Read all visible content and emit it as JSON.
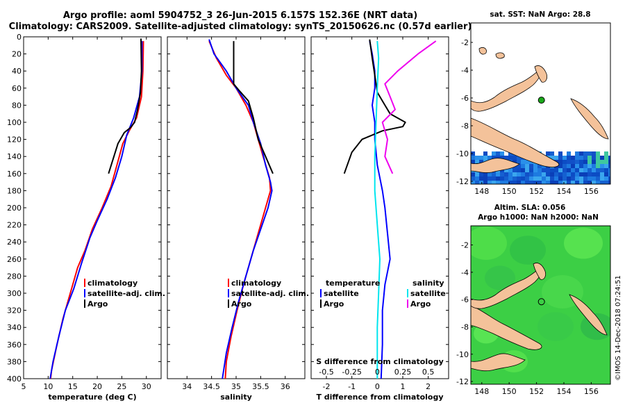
{
  "title_line1": "Argo profile: aoml 5904752_3 26-Jun-2015 6.157S 152.36E (NRT data)",
  "title_line2": "Climatology: CARS2009. Satellite-adjusted climatology: synTS_20150626.nc (0.57d earlier)",
  "credit": "©IMOS 14-Dec-2018 07:24:51",
  "colors": {
    "clim": "#ff0000",
    "sat": "#0000ff",
    "argo": "#000000",
    "sat_s": "#00e5ee",
    "argo_s": "#ee00ee",
    "land": "#f4c29a",
    "ocean_sst": "#1560d0",
    "ocean_sla": "#3bd24a",
    "float": "#1aa81a"
  },
  "chart_data": [
    {
      "id": "temperature",
      "type": "line",
      "xlabel": "temperature (deg C)",
      "xlim": [
        5,
        33
      ],
      "ylim": [
        0,
        400
      ],
      "y_ticks": [
        0,
        20,
        40,
        60,
        80,
        100,
        120,
        140,
        160,
        180,
        200,
        220,
        240,
        260,
        280,
        300,
        320,
        340,
        360,
        380,
        400
      ],
      "x_ticks": [
        5,
        10,
        15,
        20,
        25,
        30
      ],
      "legend": [
        "climatology",
        "satellite-adj. clim.",
        "Argo"
      ],
      "series": [
        {
          "name": "climatology",
          "color_key": "clim",
          "points": [
            [
              29.4,
              5
            ],
            [
              29.3,
              40
            ],
            [
              29.0,
              70
            ],
            [
              28.0,
              95
            ],
            [
              26.5,
              110
            ],
            [
              25.2,
              125
            ],
            [
              24.0,
              150
            ],
            [
              22.8,
              175
            ],
            [
              21.0,
              200
            ],
            [
              19.0,
              225
            ],
            [
              17.5,
              250
            ],
            [
              16.0,
              270
            ],
            [
              14.5,
              300
            ],
            [
              13.0,
              330
            ],
            [
              11.8,
              360
            ],
            [
              10.7,
              390
            ],
            [
              10.5,
              400
            ]
          ]
        },
        {
          "name": "satellite-adj. clim.",
          "color_key": "sat",
          "points": [
            [
              29.1,
              5
            ],
            [
              29.1,
              40
            ],
            [
              28.6,
              70
            ],
            [
              27.4,
              95
            ],
            [
              26.0,
              115
            ],
            [
              25.0,
              140
            ],
            [
              23.7,
              165
            ],
            [
              22.0,
              190
            ],
            [
              20.0,
              215
            ],
            [
              18.5,
              235
            ],
            [
              16.8,
              265
            ],
            [
              15.2,
              295
            ],
            [
              13.5,
              320
            ],
            [
              12.2,
              350
            ],
            [
              11.0,
              380
            ],
            [
              10.4,
              400
            ]
          ]
        },
        {
          "name": "Argo",
          "color_key": "argo",
          "points": [
            [
              28.9,
              2
            ],
            [
              29.0,
              40
            ],
            [
              28.8,
              65
            ],
            [
              28.2,
              85
            ],
            [
              27.6,
              100
            ],
            [
              26.8,
              106
            ],
            [
              25.5,
              112
            ],
            [
              24.2,
              125
            ],
            [
              22.3,
              160
            ]
          ]
        }
      ]
    },
    {
      "id": "salinity",
      "type": "line",
      "xlabel": "salinity",
      "xlim": [
        33.6,
        36.4
      ],
      "ylim": [
        0,
        400
      ],
      "x_ticks": [
        34,
        34.5,
        35,
        35.5,
        36
      ],
      "legend": [
        "climatology",
        "satellite-adj. clim.",
        "Argo"
      ],
      "series": [
        {
          "name": "climatology",
          "color_key": "clim",
          "points": [
            [
              34.45,
              5
            ],
            [
              34.6,
              25
            ],
            [
              34.8,
              45
            ],
            [
              35.0,
              60
            ],
            [
              35.2,
              80
            ],
            [
              35.35,
              100
            ],
            [
              35.45,
              120
            ],
            [
              35.55,
              140
            ],
            [
              35.68,
              165
            ],
            [
              35.7,
              180
            ],
            [
              35.6,
              200
            ],
            [
              35.45,
              230
            ],
            [
              35.3,
              260
            ],
            [
              35.15,
              290
            ],
            [
              35.02,
              320
            ],
            [
              34.9,
              350
            ],
            [
              34.8,
              380
            ],
            [
              34.78,
              400
            ]
          ]
        },
        {
          "name": "satellite-adj. clim.",
          "color_key": "sat",
          "points": [
            [
              34.45,
              3
            ],
            [
              34.55,
              20
            ],
            [
              34.8,
              40
            ],
            [
              35.0,
              60
            ],
            [
              35.25,
              80
            ],
            [
              35.35,
              100
            ],
            [
              35.5,
              125
            ],
            [
              35.6,
              150
            ],
            [
              35.7,
              170
            ],
            [
              35.73,
              180
            ],
            [
              35.65,
              200
            ],
            [
              35.5,
              225
            ],
            [
              35.35,
              250
            ],
            [
              35.2,
              280
            ],
            [
              35.05,
              310
            ],
            [
              34.92,
              340
            ],
            [
              34.8,
              370
            ],
            [
              34.72,
              400
            ]
          ]
        },
        {
          "name": "Argo",
          "color_key": "argo",
          "points": [
            [
              34.95,
              5
            ],
            [
              34.95,
              55
            ],
            [
              35.05,
              62
            ],
            [
              35.25,
              75
            ],
            [
              35.35,
              95
            ],
            [
              35.45,
              120
            ],
            [
              35.6,
              140
            ],
            [
              35.75,
              160
            ]
          ]
        }
      ]
    },
    {
      "id": "difference",
      "type": "line",
      "xlabel": "T difference from climatology",
      "xlabel_top": "S difference from climatology",
      "xlim": [
        -2.6,
        2.8
      ],
      "ylim": [
        0,
        400
      ],
      "x_ticks": [
        -2,
        -1,
        0,
        1,
        2
      ],
      "x_ticks_top": [
        "-0.5",
        "-0.25",
        "0",
        "0.25",
        "0.5"
      ],
      "legend_left_title": "temperature",
      "legend_left": [
        "satellite",
        "Argo"
      ],
      "legend_right_title": "salinity",
      "legend_right": [
        "satellite",
        "Argo"
      ],
      "series": [
        {
          "name": "T satellite",
          "color_key": "sat",
          "points": [
            [
              -0.3,
              5
            ],
            [
              -0.2,
              20
            ],
            [
              -0.1,
              40
            ],
            [
              -0.1,
              60
            ],
            [
              -0.2,
              80
            ],
            [
              -0.1,
              100
            ],
            [
              -0.1,
              120
            ],
            [
              0.0,
              150
            ],
            [
              0.2,
              180
            ],
            [
              0.3,
              200
            ],
            [
              0.4,
              230
            ],
            [
              0.5,
              260
            ],
            [
              0.3,
              290
            ],
            [
              0.2,
              320
            ],
            [
              0.2,
              360
            ],
            [
              0.15,
              400
            ]
          ]
        },
        {
          "name": "T Argo",
          "color_key": "argo",
          "points": [
            [
              -0.3,
              3
            ],
            [
              -0.2,
              25
            ],
            [
              -0.1,
              45
            ],
            [
              0.0,
              65
            ],
            [
              0.3,
              80
            ],
            [
              0.5,
              90
            ],
            [
              1.1,
              100
            ],
            [
              1.0,
              105
            ],
            [
              0.2,
              110
            ],
            [
              -0.6,
              120
            ],
            [
              -1.0,
              135
            ],
            [
              -1.3,
              160
            ]
          ]
        },
        {
          "name": "S satellite",
          "color_key": "sat_s",
          "points": [
            [
              0.0,
              5
            ],
            [
              0.05,
              25
            ],
            [
              0.0,
              60
            ],
            [
              -0.05,
              100
            ],
            [
              -0.1,
              140
            ],
            [
              -0.1,
              180
            ],
            [
              0.0,
              220
            ],
            [
              0.1,
              260
            ],
            [
              0.05,
              300
            ],
            [
              0.0,
              340
            ],
            [
              0.0,
              400
            ]
          ]
        },
        {
          "name": "S Argo",
          "color_key": "argo_s",
          "points": [
            [
              2.3,
              5
            ],
            [
              1.6,
              20
            ],
            [
              0.8,
              40
            ],
            [
              0.3,
              55
            ],
            [
              0.5,
              70
            ],
            [
              0.7,
              85
            ],
            [
              0.2,
              100
            ],
            [
              0.4,
              120
            ],
            [
              0.3,
              140
            ],
            [
              0.6,
              160
            ]
          ]
        }
      ]
    }
  ],
  "map_sst": {
    "title": "sat. SST: NaN Argo: 28.8",
    "x_ticks": [
      "148",
      "150",
      "152",
      "154",
      "156"
    ],
    "y_ticks": [
      "-2",
      "-4",
      "-6",
      "-8",
      "-10",
      "-12"
    ],
    "float_lon": 152.36,
    "float_lat": -6.157
  },
  "map_sla": {
    "title1": "Altim. SLA: 0.056",
    "title2": "Argo h1000: NaN h2000: NaN",
    "x_ticks": [
      "148",
      "150",
      "152",
      "154",
      "156"
    ],
    "y_ticks": [
      "-2",
      "-4",
      "-6",
      "-8",
      "-10",
      "-12"
    ],
    "float_lon": 152.36,
    "float_lat": -6.157
  }
}
